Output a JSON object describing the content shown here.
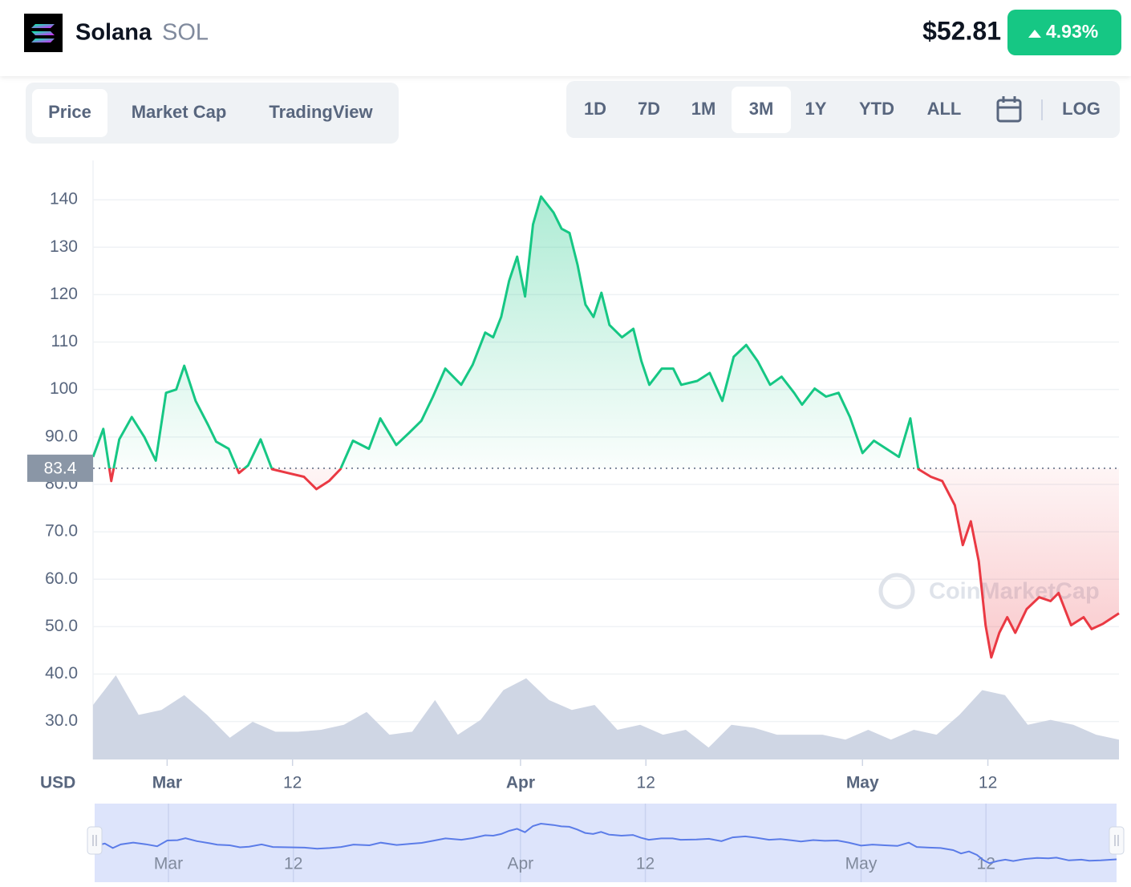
{
  "header": {
    "name": "Solana",
    "symbol": "SOL",
    "price": "$52.81",
    "change": "4.93%"
  },
  "tabs": [
    "Price",
    "Market Cap",
    "TradingView"
  ],
  "ranges": [
    "1D",
    "7D",
    "1M",
    "3M",
    "1Y",
    "YTD",
    "ALL"
  ],
  "scale_button": "LOG",
  "chart_data": {
    "type": "line",
    "currency": "USD",
    "watermark": "CoinMarketCap",
    "x": [
      -6.5,
      -5.6,
      -4.9,
      -4.2,
      -3.1,
      -2,
      -1,
      -0.1,
      0.8,
      1.5,
      2.5,
      3.6,
      4.3,
      5.4,
      6.3,
      7.1,
      8.2,
      9.2,
      10.6,
      12,
      13.1,
      14.2,
      15.2,
      16.3,
      17.7,
      18.7,
      20.1,
      21.2,
      22.3,
      23.3,
      24.4,
      25.8,
      26.8,
      27.9,
      28.6,
      29.3,
      30,
      30.7,
      31.4,
      32.1,
      32.8,
      33.9,
      34.6,
      35.3,
      36,
      36.7,
      37.4,
      38.1,
      38.8,
      39.9,
      40.9,
      41.6,
      42.3,
      43.4,
      44.4,
      45.1,
      46.5,
      47.6,
      48.7,
      49.7,
      50.8,
      51.8,
      52.9,
      53.9,
      55,
      55.7,
      56.8,
      57.8,
      58.9,
      59.9,
      61,
      62,
      63.1,
      64.2,
      65.2,
      65.9,
      67,
      68,
      69.1,
      69.8,
      70.5,
      71.2,
      71.8,
      72.3,
      73,
      73.7,
      74.4,
      75.4,
      76.5,
      77.5,
      78.2,
      79.3,
      80.4,
      81.1,
      82.1,
      83.5
    ],
    "values": [
      85.8,
      91.7,
      80.7,
      89.5,
      94.2,
      90,
      85,
      99.3,
      100,
      105,
      97.6,
      92.5,
      89,
      87.5,
      82.4,
      84,
      89.5,
      83.2,
      82.4,
      81.6,
      79,
      80.7,
      83.2,
      89.2,
      87.5,
      93.9,
      88.3,
      90.8,
      93.4,
      98.4,
      104.4,
      101,
      105.2,
      112,
      111,
      115.3,
      122.9,
      128,
      119.6,
      134.8,
      140.7,
      137.3,
      133.9,
      133,
      126.3,
      117.9,
      115.3,
      120.4,
      113.6,
      111,
      112.8,
      106,
      101,
      104.4,
      104.4,
      101,
      101.8,
      103.5,
      97.6,
      106.9,
      109.4,
      106,
      101,
      102.7,
      99.3,
      96.8,
      100.2,
      98.5,
      99.3,
      94.2,
      86.6,
      89.2,
      87.5,
      85.8,
      93.9,
      83.2,
      81.6,
      80.7,
      75.6,
      67.2,
      72.2,
      63.8,
      50.3,
      43.5,
      48.7,
      52,
      48.7,
      53.7,
      56.2,
      55.4,
      57.1,
      50.3,
      52,
      49.5,
      50.6,
      52.8
    ],
    "color_up": "#16c784",
    "color_down": "#ea3943",
    "baseline": 83.4,
    "xlim": [
      -6.5,
      83.5
    ],
    "xticks": [
      {
        "value": 0,
        "label": "Mar"
      },
      {
        "value": 11,
        "label": "12"
      },
      {
        "value": 31,
        "label": "Apr"
      },
      {
        "value": 42,
        "label": "12"
      },
      {
        "value": 61,
        "label": "May"
      },
      {
        "value": 72,
        "label": "12"
      }
    ],
    "ylim": [
      22,
      148.3
    ],
    "yticks": [
      140,
      130,
      120,
      110,
      100,
      {
        "value": 90,
        "label": "90.0"
      },
      {
        "value": 80,
        "label": "80.0"
      },
      {
        "value": 70,
        "label": "70.0"
      },
      {
        "value": 60,
        "label": "60.0"
      },
      {
        "value": 50,
        "label": "50.0"
      },
      {
        "value": 40,
        "label": "40.0"
      },
      {
        "value": 30,
        "label": "30.0"
      }
    ],
    "grid": true,
    "volume": {
      "color": "#cfd6e4",
      "x": [
        -6.5,
        -4.5,
        -2.5,
        -0.5,
        1.5,
        3.5,
        5.5,
        7.5,
        9.5,
        11.5,
        13.5,
        15.5,
        17.5,
        19.5,
        21.5,
        23.5,
        25.5,
        27.5,
        29.5,
        31.5,
        33.5,
        35.5,
        37.5,
        39.5,
        41.5,
        43.5,
        45.5,
        47.5,
        49.5,
        51.5,
        53.5,
        55.5,
        57.5,
        59.5,
        61.5,
        63.5,
        65.5,
        67.5,
        69.5,
        71.5,
        73.5,
        75.5,
        77.5,
        79.5,
        81.5,
        83.5
      ],
      "values": [
        55,
        85,
        45,
        50,
        65,
        45,
        22,
        38,
        28,
        28,
        30,
        35,
        48,
        25,
        28,
        60,
        25,
        40,
        70,
        82,
        60,
        50,
        55,
        30,
        35,
        25,
        30,
        12,
        35,
        32,
        25,
        25,
        25,
        20,
        30,
        20,
        30,
        25,
        45,
        70,
        65,
        35,
        40,
        35,
        25,
        20
      ]
    }
  }
}
